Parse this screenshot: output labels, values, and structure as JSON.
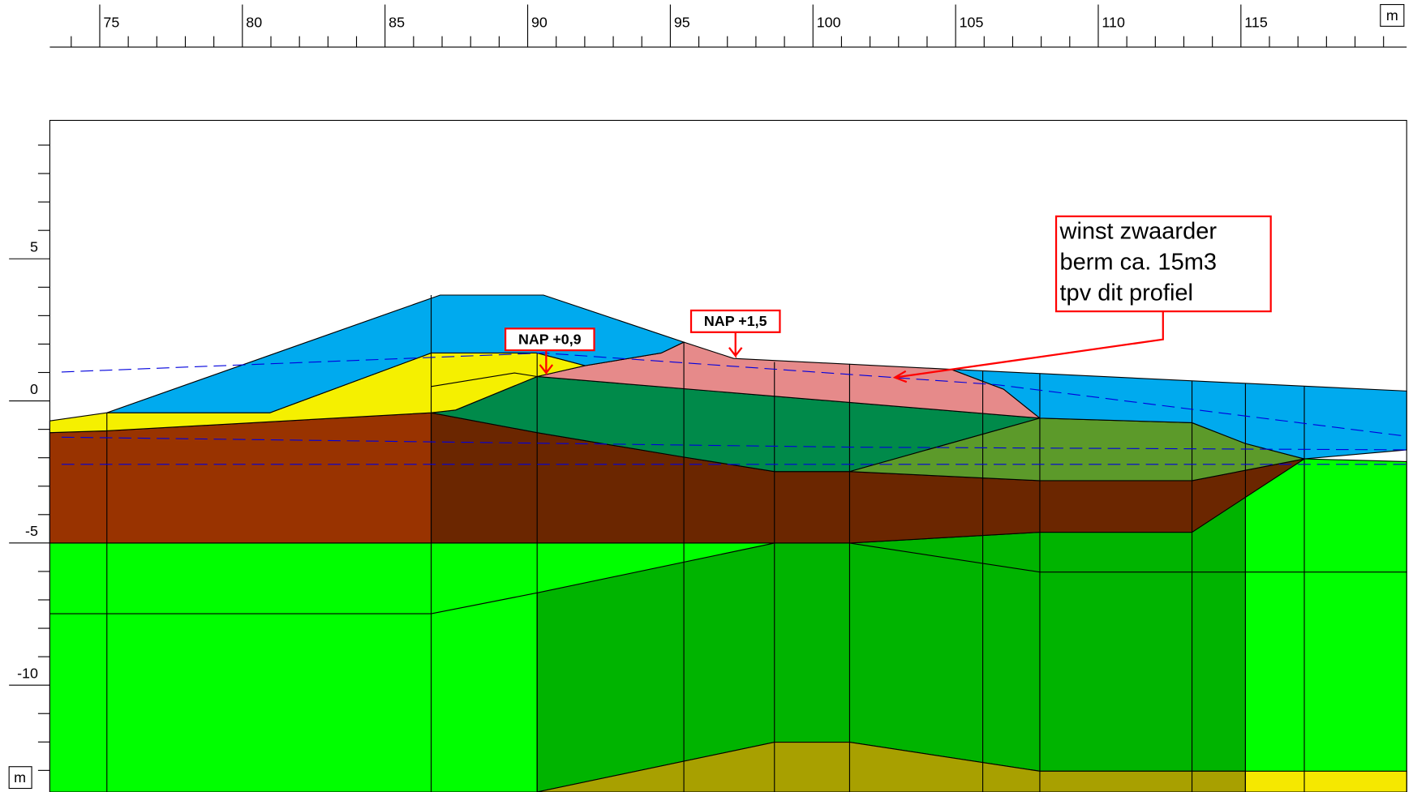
{
  "x_axis": {
    "unit": "m",
    "xlim": [
      73.25,
      120.81
    ],
    "ticks": [
      75,
      80,
      85,
      90,
      95,
      100,
      105,
      110,
      115
    ],
    "minor_ticks": [
      74,
      76,
      77,
      78,
      79,
      81,
      82,
      83,
      84,
      86,
      87,
      88,
      89,
      91,
      92,
      93,
      94,
      96,
      97,
      98,
      99,
      101,
      102,
      103,
      104,
      106,
      107,
      108,
      109,
      111,
      112,
      113,
      114,
      116,
      117,
      118,
      119,
      120
    ]
  },
  "y_axis": {
    "unit": "m",
    "ylim": [
      -13.76,
      9.87
    ],
    "ticks": [
      5,
      0,
      -5,
      -10
    ],
    "minor_ticks": [
      9,
      8,
      7,
      6,
      4,
      3,
      2,
      1,
      -1,
      -2,
      -3,
      -4,
      -6,
      -7,
      -8,
      -9,
      -11,
      -12,
      -13
    ]
  },
  "annotations": [
    {
      "text": "NAP +0,9"
    },
    {
      "text": "NAP +1,5"
    },
    {
      "lines": [
        "winst zwaarder",
        "berm ca. 15m3",
        "tpv dit profiel"
      ]
    }
  ]
}
